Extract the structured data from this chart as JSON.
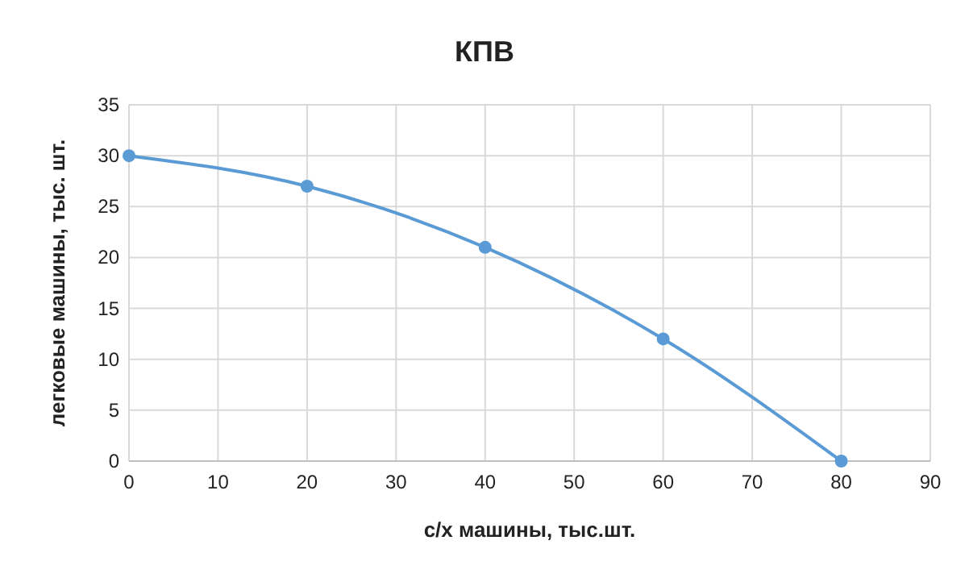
{
  "chart_data": {
    "type": "line",
    "title": "КПВ",
    "xlabel": "с/х машины, тыс.шт.",
    "ylabel": "легковые машины, тыс. шт.",
    "x": [
      0,
      20,
      40,
      60,
      80
    ],
    "series": [
      {
        "color": "#5b9bd5",
        "values": [
          30,
          27,
          21,
          12,
          0
        ]
      }
    ],
    "xlim": [
      0,
      90
    ],
    "xticks": [
      0,
      10,
      20,
      30,
      40,
      50,
      60,
      70,
      80,
      90
    ],
    "ylim": [
      0,
      35
    ],
    "yticks": [
      0,
      5,
      10,
      15,
      20,
      25,
      30,
      35
    ],
    "grid": true,
    "marker": "circle",
    "line_style": "solid"
  }
}
